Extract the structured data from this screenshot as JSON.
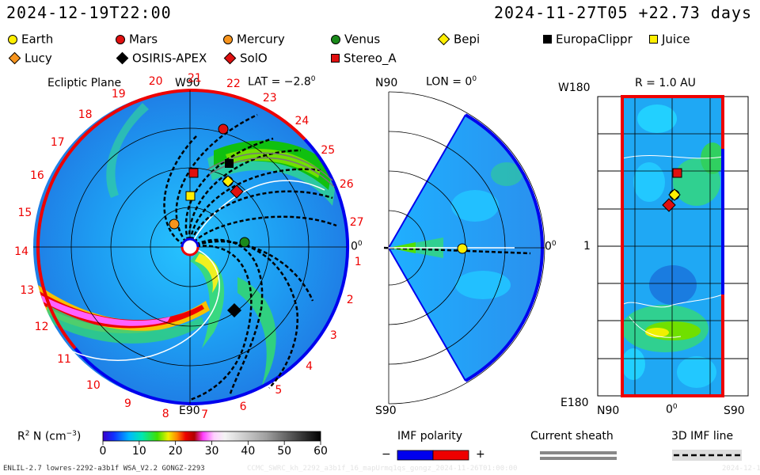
{
  "header": {
    "start_time": "2024-12-19T22:00",
    "ref_time": "2024-11-27T05 +22.73 days"
  },
  "legend": [
    {
      "name": "Earth",
      "shape": "circle",
      "color": "#ffef00"
    },
    {
      "name": "Mars",
      "shape": "circle",
      "color": "#e01010"
    },
    {
      "name": "Mercury",
      "shape": "circle",
      "color": "#f7941d"
    },
    {
      "name": "Venus",
      "shape": "circle",
      "color": "#1a8a1a"
    },
    {
      "name": "Bepi",
      "shape": "diamond",
      "color": "#ffef00"
    },
    {
      "name": "EuropaClippr",
      "shape": "square",
      "color": "#000000"
    },
    {
      "name": "Juice",
      "shape": "square",
      "color": "#ffef00"
    },
    {
      "name": "Lucy",
      "shape": "diamond",
      "color": "#f7941d"
    },
    {
      "name": "OSIRIS-APEX",
      "shape": "diamond",
      "color": "#000000"
    },
    {
      "name": "SolO",
      "shape": "diamond",
      "color": "#e01010"
    },
    {
      "name": "Stereo_A",
      "shape": "square",
      "color": "#e01010"
    }
  ],
  "ecliptic": {
    "title": "Ecliptic Plane",
    "lat_label": "LAT = −2.8",
    "lat_deg": "0",
    "w90": "W90",
    "e90": "E90",
    "zero": "0",
    "zero_deg": "0",
    "carrington_numbers": [
      "1",
      "2",
      "3",
      "4",
      "5",
      "6",
      "7",
      "8",
      "9",
      "10",
      "11",
      "12",
      "13",
      "14",
      "15",
      "16",
      "17",
      "18",
      "19",
      "20",
      "21",
      "22",
      "23",
      "24",
      "25",
      "26",
      "27"
    ]
  },
  "meridional": {
    "n90": "N90",
    "s90": "S90",
    "lon_label": "LON = 0",
    "lon_deg": "0",
    "zero": "0",
    "zero_deg": "0"
  },
  "radial": {
    "r_label": "R = 1.0 AU",
    "w180": "W180",
    "e180": "E180",
    "one": "1",
    "n90": "N90",
    "zero": "0",
    "zero_deg": "0",
    "s90": "S90"
  },
  "colorbar": {
    "label_main": "R",
    "label_sup": "2",
    "label_n": " N (cm",
    "label_exp": "−3",
    "label_close": ")",
    "ticks": [
      "0",
      "10",
      "20",
      "30",
      "40",
      "50",
      "60"
    ],
    "range": [
      0,
      60
    ]
  },
  "imf": {
    "title": "IMF polarity",
    "minus": "−",
    "plus": "+",
    "colors": {
      "negative": "#0000ee",
      "positive": "#ee0000"
    }
  },
  "sheath": {
    "title": "Current sheath"
  },
  "imf3d": {
    "title": "3D IMF line"
  },
  "footer": {
    "model": "ENLIL-2.7 lowres-2292-a3b1f WSA_V2.2 GONGZ-2293",
    "run": "CCMC_SWRC_kh_2292_a3b1f_16_mapUrmq1qs_gongz_2024-11-26T01:00:00",
    "date": "2024-12-19"
  }
}
